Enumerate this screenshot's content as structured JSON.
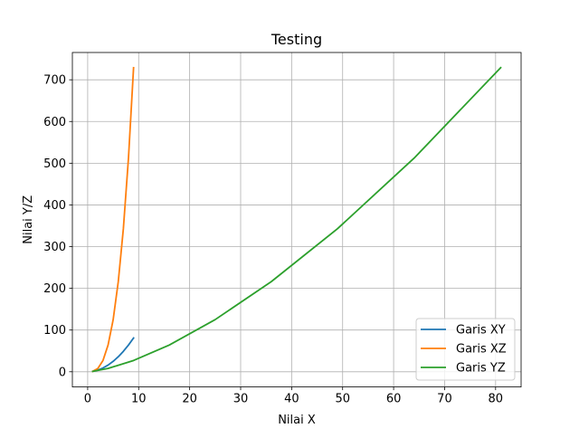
{
  "chart_data": {
    "type": "line",
    "title": "Testing",
    "xlabel": "Nilai X",
    "ylabel": "Nilai Y/Z",
    "xlim": [
      -3,
      85
    ],
    "ylim": [
      -36.45,
      765.45
    ],
    "xticks": [
      0,
      10,
      20,
      30,
      40,
      50,
      60,
      70,
      80
    ],
    "yticks": [
      0,
      100,
      200,
      300,
      400,
      500,
      600,
      700
    ],
    "grid": true,
    "legend_position": "lower-right",
    "series": [
      {
        "name": "Garis XY",
        "color": "#1f77b4",
        "x": [
          1,
          2,
          3,
          4,
          5,
          6,
          7,
          8,
          9
        ],
        "y": [
          1,
          4,
          9,
          16,
          25,
          36,
          49,
          64,
          81
        ]
      },
      {
        "name": "Garis XZ",
        "color": "#ff7f0e",
        "x": [
          1,
          2,
          3,
          4,
          5,
          6,
          7,
          8,
          9
        ],
        "y": [
          1,
          8,
          27,
          64,
          125,
          216,
          343,
          512,
          729
        ]
      },
      {
        "name": "Garis YZ",
        "color": "#2ca02c",
        "x": [
          1,
          4,
          9,
          16,
          25,
          36,
          49,
          64,
          81
        ],
        "y": [
          1,
          8,
          27,
          64,
          125,
          216,
          343,
          512,
          729
        ]
      }
    ]
  }
}
